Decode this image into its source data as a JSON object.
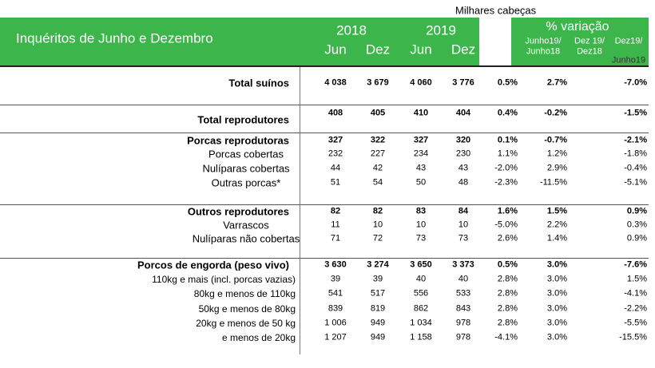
{
  "unit": "Milhares cabeças",
  "header": {
    "title": "Inquéritos de Junho e Dezembro",
    "years": [
      "2018",
      "2019"
    ],
    "months": [
      "Jun",
      "Dez",
      "Jun",
      "Dez"
    ],
    "variation_title": "% variação",
    "variation_cols": [
      [
        "Junho19/",
        "Junho18"
      ],
      [
        "Dez 19/",
        "Dez18"
      ],
      [
        "Dez19/",
        "Junho19"
      ]
    ]
  },
  "sections": [
    {
      "rows": [
        {
          "label": "Total suínos",
          "values": [
            "4 038",
            "3 679",
            "4 060",
            "3 776"
          ],
          "variations": [
            "0.5%",
            "2.7%",
            "-7.0%"
          ]
        }
      ]
    },
    {
      "rows": [
        {
          "label": "Total reprodutores",
          "values": [
            "408",
            "405",
            "410",
            "404"
          ],
          "variations": [
            "0.4%",
            "-0.2%",
            "-1.5%"
          ]
        }
      ]
    },
    {
      "rows": [
        {
          "label": "Porcas reprodutoras",
          "values": [
            "327",
            "322",
            "327",
            "320"
          ],
          "variations": [
            "0.1%",
            "-0.7%",
            "-2.1%"
          ]
        },
        {
          "label": "Porcas cobertas",
          "values": [
            "232",
            "227",
            "234",
            "230"
          ],
          "variations": [
            "1.1%",
            "1.2%",
            "-1.8%"
          ]
        },
        {
          "label": "Nulíparas cobertas",
          "values": [
            "44",
            "42",
            "43",
            "43"
          ],
          "variations": [
            "-2.0%",
            "2.9%",
            "-0.4%"
          ]
        },
        {
          "label": "Outras porcas*",
          "values": [
            "51",
            "54",
            "50",
            "48"
          ],
          "variations": [
            "-2.3%",
            "-11.5%",
            "-5.1%"
          ]
        }
      ]
    },
    {
      "rows": [
        {
          "label": "Outros reprodutores",
          "values": [
            "82",
            "82",
            "83",
            "84"
          ],
          "variations": [
            "1.6%",
            "1.5%",
            "0.9%"
          ]
        },
        {
          "label": "Varrascos",
          "values": [
            "11",
            "10",
            "10",
            "10"
          ],
          "variations": [
            "-5.0%",
            "2.2%",
            "0.3%"
          ]
        },
        {
          "label": "Nulíparas não cobertas",
          "values": [
            "71",
            "72",
            "73",
            "73"
          ],
          "variations": [
            "2.6%",
            "1.4%",
            "0.9%"
          ]
        }
      ]
    },
    {
      "rows": [
        {
          "label": "Porcos de engorda (peso vivo)",
          "values": [
            "3 630",
            "3 274",
            "3 650",
            "3 373"
          ],
          "variations": [
            "0.5%",
            "3.0%",
            "-7.6%"
          ]
        },
        {
          "label": "110kg e mais (incl. porcas vazias)",
          "values": [
            "39",
            "39",
            "40",
            "40"
          ],
          "variations": [
            "2.8%",
            "3.0%",
            "1.5%"
          ]
        },
        {
          "label": "80kg e menos de 110kg",
          "values": [
            "541",
            "517",
            "556",
            "533"
          ],
          "variations": [
            "2.8%",
            "3.0%",
            "-4.1%"
          ]
        },
        {
          "label": "50kg e menos de 80kg",
          "values": [
            "839",
            "819",
            "862",
            "843"
          ],
          "variations": [
            "2.8%",
            "3.0%",
            "-2.2%"
          ]
        },
        {
          "label": "20kg e menos de 50 kg",
          "values": [
            "1 006",
            "949",
            "1 034",
            "978"
          ],
          "variations": [
            "2.8%",
            "3.0%",
            "-5.5%"
          ]
        },
        {
          "label": "e menos de 20kg",
          "values": [
            "1 207",
            "949",
            "1 158",
            "978"
          ],
          "variations": [
            "-4.1%",
            "3.0%",
            "-15.5%"
          ]
        }
      ]
    }
  ]
}
